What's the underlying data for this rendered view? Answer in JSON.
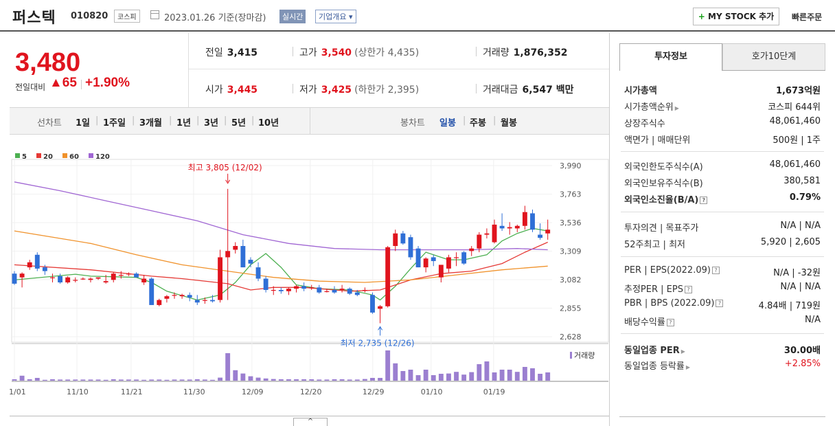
{
  "header": {
    "stock_name": "퍼스텍",
    "stock_code": "010820",
    "market": "코스피",
    "date_text": "2023.01.26 기준(장마감)",
    "realtime_label": "실시간",
    "overview_label": "기업개요 ▾",
    "mystock_plus": "+",
    "mystock_label": " MY STOCK 추가",
    "quick_order": "빠른주문"
  },
  "price": {
    "current": "3,480",
    "change_label": "전일대비",
    "change": "▲65",
    "change_pct": "+1.90%"
  },
  "stats": {
    "prev_close_label": "전일",
    "prev_close": "3,415",
    "high_label": "고가",
    "high": "3,540",
    "upper_limit": "(상한가 4,435)",
    "volume_label": "거래량",
    "volume": "1,876,352",
    "open_label": "시가",
    "open": "3,445",
    "low_label": "저가",
    "low": "3,425",
    "lower_limit": "(하한가 2,395)",
    "amount_label": "거래대금",
    "amount": "6,547 백만"
  },
  "chart_tabs": {
    "line_label": "선차트",
    "line_periods": [
      "1일",
      "1주일",
      "3개월",
      "1년",
      "3년",
      "5년",
      "10년"
    ],
    "candle_label": "봉차트",
    "candle_periods": [
      "일봉",
      "주봉",
      "월봉"
    ],
    "selected_candle": "일봉"
  },
  "panel": {
    "tab_active": "투자정보",
    "tab_other": "호가10단계",
    "rows1": [
      {
        "label": "시가총액",
        "value": "1,673억원"
      },
      {
        "label": "시가총액순위",
        "value": "코스피 644위"
      },
      {
        "label": "상장주식수",
        "value": "48,061,460"
      },
      {
        "label": "액면가 | 매매단위",
        "value": "500원 | 1주"
      }
    ],
    "rows2": [
      {
        "label": "외국인한도주식수(A)",
        "value": "48,061,460"
      },
      {
        "label": "외국인보유주식수(B)",
        "value": "380,581"
      },
      {
        "label": "외국인소진율(B/A)",
        "value": "0.79%"
      }
    ],
    "rows3": [
      {
        "label": "투자의견 | 목표주가",
        "value": "N/A | N/A"
      },
      {
        "label": "52주최고 | 최저",
        "value": "5,920 | 2,605"
      }
    ],
    "rows4": [
      {
        "label": "PER | EPS(2022.09)",
        "value": "N/A | -32원"
      },
      {
        "label": "추정PER | EPS",
        "value": "N/A | N/A"
      },
      {
        "label": "PBR | BPS (2022.09)",
        "value": "4.84배 | 719원"
      },
      {
        "label": "배당수익률",
        "value": "N/A"
      }
    ],
    "rows5": [
      {
        "label": "동일업종 PER",
        "value": "30.00배"
      },
      {
        "label": "동일업종 등락률",
        "value": "+2.85%"
      }
    ],
    "handle": "^"
  },
  "chart_data": {
    "type": "candlestick",
    "legend": [
      "5",
      "20",
      "60",
      "120"
    ],
    "legend_colors": [
      "#4caf50",
      "#e53935",
      "#f0922b",
      "#a066d3"
    ],
    "up_color": "#e0141e",
    "down_color": "#2f6fd6",
    "y_ticks": [
      "3,990",
      "3,763",
      "3,536",
      "3,309",
      "3,082",
      "2,855",
      "2,628"
    ],
    "ylim": [
      2628,
      3990
    ],
    "x_ticks": [
      "11/01",
      "11/10",
      "11/21",
      "11/30",
      "12/09",
      "12/20",
      "12/29",
      "01/10",
      "01/19"
    ],
    "max_annotation": "최고 3,805 (12/02)",
    "min_annotation": "최저 2,735 (12/26)",
    "volume_label": "거래량",
    "candles": [
      [
        3130,
        3150,
        3040,
        3050
      ],
      [
        3100,
        3140,
        3020,
        3130
      ],
      [
        3180,
        3240,
        3160,
        3220
      ],
      [
        3280,
        3300,
        3150,
        3170
      ],
      [
        3180,
        3200,
        3120,
        3150
      ],
      [
        3100,
        3130,
        3060,
        3100
      ],
      [
        3110,
        3130,
        3050,
        3060
      ],
      [
        3060,
        3110,
        3050,
        3100
      ],
      [
        3080,
        3100,
        3060,
        3080
      ],
      [
        3090,
        3100,
        3080,
        3090
      ],
      [
        3080,
        3100,
        3060,
        3090
      ],
      [
        3090,
        3100,
        3080,
        3100
      ],
      [
        3060,
        3120,
        3050,
        3070
      ],
      [
        3080,
        3140,
        3060,
        3130
      ],
      [
        3120,
        3150,
        3090,
        3120
      ],
      [
        3130,
        3140,
        3110,
        3130
      ],
      [
        3130,
        3140,
        3100,
        3100
      ],
      [
        3060,
        3120,
        3040,
        3090
      ],
      [
        3090,
        3100,
        2880,
        2880
      ],
      [
        2880,
        2930,
        2870,
        2920
      ],
      [
        2930,
        2960,
        2900,
        2950
      ],
      [
        2960,
        2980,
        2930,
        2960
      ],
      [
        2950,
        2970,
        2930,
        2960
      ],
      [
        2960,
        2980,
        2910,
        2940
      ],
      [
        2920,
        2960,
        2880,
        2900
      ],
      [
        2920,
        2940,
        2890,
        2920
      ],
      [
        2920,
        2960,
        2900,
        2910
      ],
      [
        2920,
        3320,
        2900,
        3260
      ],
      [
        3260,
        3805,
        2920,
        3310
      ],
      [
        3320,
        3380,
        3290,
        3350
      ],
      [
        3350,
        3400,
        3180,
        3180
      ],
      [
        3240,
        3260,
        3180,
        3210
      ],
      [
        3180,
        3220,
        3070,
        3090
      ],
      [
        3090,
        3110,
        2980,
        3000
      ],
      [
        3000,
        3030,
        2960,
        3000
      ],
      [
        3000,
        3020,
        2970,
        2990
      ],
      [
        2990,
        3020,
        2960,
        3010
      ],
      [
        3010,
        3040,
        2980,
        3030
      ],
      [
        3030,
        3060,
        2990,
        3010
      ],
      [
        3020,
        3040,
        3000,
        3020
      ],
      [
        3020,
        3040,
        2970,
        2980
      ],
      [
        2990,
        3010,
        2980,
        2990
      ],
      [
        3000,
        3030,
        2970,
        2980
      ],
      [
        3000,
        3040,
        2980,
        3010
      ],
      [
        3010,
        3020,
        2960,
        2970
      ],
      [
        2980,
        3000,
        2950,
        2960
      ],
      [
        3000,
        3020,
        2980,
        3000
      ],
      [
        2960,
        2980,
        2810,
        2820
      ],
      [
        2850,
        2880,
        2735,
        2870
      ],
      [
        2870,
        3350,
        2860,
        3340
      ],
      [
        3350,
        3480,
        3310,
        3450
      ],
      [
        3450,
        3470,
        3360,
        3370
      ],
      [
        3420,
        3440,
        3240,
        3260
      ],
      [
        3330,
        3350,
        3180,
        3180
      ],
      [
        3180,
        3260,
        3140,
        3250
      ],
      [
        3260,
        3280,
        3190,
        3230
      ],
      [
        3100,
        3200,
        3060,
        3200
      ],
      [
        3170,
        3280,
        3140,
        3260
      ],
      [
        3260,
        3300,
        3190,
        3260
      ],
      [
        3300,
        3310,
        3200,
        3210
      ],
      [
        3310,
        3350,
        3270,
        3330
      ],
      [
        3330,
        3460,
        3300,
        3440
      ],
      [
        3440,
        3490,
        3410,
        3450
      ],
      [
        3380,
        3560,
        3370,
        3520
      ],
      [
        3510,
        3610,
        3470,
        3490
      ],
      [
        3490,
        3540,
        3440,
        3500
      ],
      [
        3490,
        3520,
        3460,
        3510
      ],
      [
        3510,
        3670,
        3480,
        3620
      ],
      [
        3610,
        3640,
        3460,
        3480
      ],
      [
        3440,
        3530,
        3400,
        3415
      ],
      [
        3450,
        3560,
        3400,
        3480
      ]
    ],
    "volumes": [
      5,
      18,
      5,
      10,
      3,
      5,
      4,
      4,
      4,
      4,
      4,
      4,
      3,
      5,
      4,
      4,
      4,
      3,
      4,
      4,
      3,
      4,
      4,
      4,
      5,
      4,
      3,
      11,
      100,
      38,
      26,
      16,
      11,
      8,
      6,
      5,
      5,
      5,
      5,
      5,
      4,
      4,
      5,
      5,
      4,
      4,
      6,
      10,
      10,
      110,
      63,
      35,
      40,
      20,
      40,
      20,
      25,
      26,
      32,
      22,
      31,
      60,
      70,
      30,
      40,
      40,
      32,
      50,
      45,
      25,
      30
    ],
    "volume_max": 110,
    "ma": {
      "ma5": [
        [
          0,
          3080
        ],
        [
          8,
          3125
        ],
        [
          10,
          3110
        ],
        [
          16,
          3100
        ],
        [
          18,
          3060
        ],
        [
          20,
          2990
        ],
        [
          24,
          2920
        ],
        [
          27,
          2960
        ],
        [
          29,
          3060
        ],
        [
          31,
          3200
        ],
        [
          33,
          3290
        ],
        [
          35,
          3180
        ],
        [
          37,
          3040
        ],
        [
          40,
          3010
        ],
        [
          44,
          3000
        ],
        [
          47,
          2960
        ],
        [
          48,
          2920
        ],
        [
          50,
          3030
        ],
        [
          52,
          3170
        ],
        [
          54,
          3300
        ],
        [
          57,
          3240
        ],
        [
          59,
          3240
        ],
        [
          62,
          3280
        ],
        [
          64,
          3390
        ],
        [
          66,
          3450
        ],
        [
          68,
          3490
        ],
        [
          69,
          3480
        ],
        [
          70,
          3470
        ]
      ],
      "ma20": [
        [
          0,
          3200
        ],
        [
          10,
          3160
        ],
        [
          18,
          3110
        ],
        [
          22,
          3090
        ],
        [
          28,
          3050
        ],
        [
          31,
          3000
        ],
        [
          34,
          3020
        ],
        [
          38,
          3020
        ],
        [
          44,
          2990
        ],
        [
          48,
          3000
        ],
        [
          52,
          3080
        ],
        [
          56,
          3130
        ],
        [
          60,
          3150
        ],
        [
          64,
          3210
        ],
        [
          67,
          3300
        ],
        [
          70,
          3380
        ]
      ],
      "ma60": [
        [
          0,
          3470
        ],
        [
          4,
          3430
        ],
        [
          10,
          3370
        ],
        [
          16,
          3280
        ],
        [
          22,
          3200
        ],
        [
          28,
          3150
        ],
        [
          34,
          3100
        ],
        [
          40,
          3070
        ],
        [
          46,
          3060
        ],
        [
          52,
          3080
        ],
        [
          58,
          3120
        ],
        [
          64,
          3160
        ],
        [
          70,
          3190
        ]
      ],
      "ma120": [
        [
          0,
          3860
        ],
        [
          6,
          3790
        ],
        [
          12,
          3710
        ],
        [
          18,
          3630
        ],
        [
          24,
          3550
        ],
        [
          30,
          3440
        ],
        [
          36,
          3370
        ],
        [
          42,
          3330
        ],
        [
          48,
          3320
        ],
        [
          54,
          3320
        ],
        [
          60,
          3320
        ],
        [
          66,
          3330
        ],
        [
          70,
          3320
        ]
      ]
    }
  }
}
